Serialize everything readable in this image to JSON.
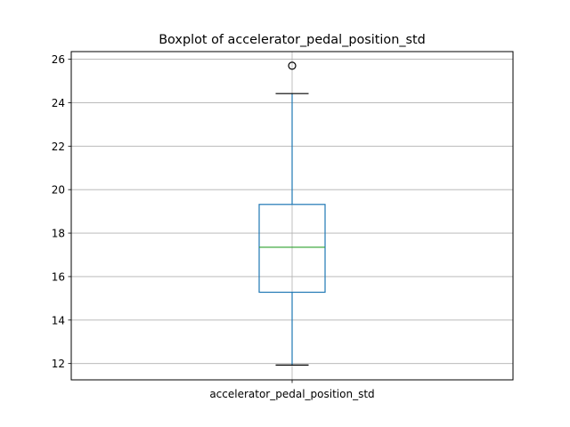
{
  "chart_data": {
    "type": "box",
    "title": "Boxplot of accelerator_pedal_position_std",
    "xlabel": "",
    "ylabel": "",
    "categories": [
      "accelerator_pedal_position_std"
    ],
    "boxes": [
      {
        "category": "accelerator_pedal_position_std",
        "whisker_low": 11.93,
        "q1": 15.28,
        "median": 17.35,
        "q3": 19.32,
        "whisker_high": 24.42,
        "outliers": [
          25.7
        ]
      }
    ],
    "ylim": [
      11.25,
      26.35
    ],
    "yticks": [
      12,
      14,
      16,
      18,
      20,
      22,
      24,
      26
    ],
    "grid": true,
    "colors": {
      "box": "#1f77b4",
      "whisker": "#1f77b4",
      "cap": "#000000",
      "median": "#2ca02c",
      "outlier": "#000000",
      "grid": "#b0b0b0",
      "axes": "#000000"
    }
  }
}
